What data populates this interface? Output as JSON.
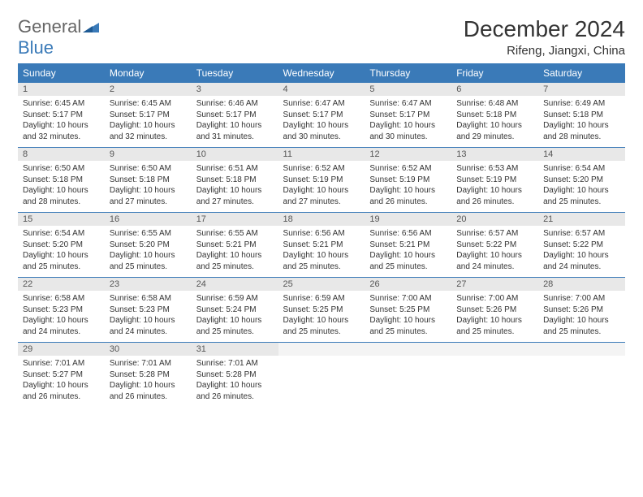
{
  "brand": {
    "word1": "General",
    "word2": "Blue"
  },
  "title": "December 2024",
  "location": "Rifeng, Jiangxi, China",
  "colors": {
    "accent": "#3a7ab8",
    "header_bg": "#3a7ab8",
    "header_text": "#ffffff",
    "daynum_bg": "#e8e8e8",
    "body_text": "#333333",
    "page_bg": "#ffffff"
  },
  "weekdays": [
    "Sunday",
    "Monday",
    "Tuesday",
    "Wednesday",
    "Thursday",
    "Friday",
    "Saturday"
  ],
  "weeks": [
    [
      {
        "day": "1",
        "sunrise": "Sunrise: 6:45 AM",
        "sunset": "Sunset: 5:17 PM",
        "daylight": "Daylight: 10 hours and 32 minutes."
      },
      {
        "day": "2",
        "sunrise": "Sunrise: 6:45 AM",
        "sunset": "Sunset: 5:17 PM",
        "daylight": "Daylight: 10 hours and 32 minutes."
      },
      {
        "day": "3",
        "sunrise": "Sunrise: 6:46 AM",
        "sunset": "Sunset: 5:17 PM",
        "daylight": "Daylight: 10 hours and 31 minutes."
      },
      {
        "day": "4",
        "sunrise": "Sunrise: 6:47 AM",
        "sunset": "Sunset: 5:17 PM",
        "daylight": "Daylight: 10 hours and 30 minutes."
      },
      {
        "day": "5",
        "sunrise": "Sunrise: 6:47 AM",
        "sunset": "Sunset: 5:17 PM",
        "daylight": "Daylight: 10 hours and 30 minutes."
      },
      {
        "day": "6",
        "sunrise": "Sunrise: 6:48 AM",
        "sunset": "Sunset: 5:18 PM",
        "daylight": "Daylight: 10 hours and 29 minutes."
      },
      {
        "day": "7",
        "sunrise": "Sunrise: 6:49 AM",
        "sunset": "Sunset: 5:18 PM",
        "daylight": "Daylight: 10 hours and 28 minutes."
      }
    ],
    [
      {
        "day": "8",
        "sunrise": "Sunrise: 6:50 AM",
        "sunset": "Sunset: 5:18 PM",
        "daylight": "Daylight: 10 hours and 28 minutes."
      },
      {
        "day": "9",
        "sunrise": "Sunrise: 6:50 AM",
        "sunset": "Sunset: 5:18 PM",
        "daylight": "Daylight: 10 hours and 27 minutes."
      },
      {
        "day": "10",
        "sunrise": "Sunrise: 6:51 AM",
        "sunset": "Sunset: 5:18 PM",
        "daylight": "Daylight: 10 hours and 27 minutes."
      },
      {
        "day": "11",
        "sunrise": "Sunrise: 6:52 AM",
        "sunset": "Sunset: 5:19 PM",
        "daylight": "Daylight: 10 hours and 27 minutes."
      },
      {
        "day": "12",
        "sunrise": "Sunrise: 6:52 AM",
        "sunset": "Sunset: 5:19 PM",
        "daylight": "Daylight: 10 hours and 26 minutes."
      },
      {
        "day": "13",
        "sunrise": "Sunrise: 6:53 AM",
        "sunset": "Sunset: 5:19 PM",
        "daylight": "Daylight: 10 hours and 26 minutes."
      },
      {
        "day": "14",
        "sunrise": "Sunrise: 6:54 AM",
        "sunset": "Sunset: 5:20 PM",
        "daylight": "Daylight: 10 hours and 25 minutes."
      }
    ],
    [
      {
        "day": "15",
        "sunrise": "Sunrise: 6:54 AM",
        "sunset": "Sunset: 5:20 PM",
        "daylight": "Daylight: 10 hours and 25 minutes."
      },
      {
        "day": "16",
        "sunrise": "Sunrise: 6:55 AM",
        "sunset": "Sunset: 5:20 PM",
        "daylight": "Daylight: 10 hours and 25 minutes."
      },
      {
        "day": "17",
        "sunrise": "Sunrise: 6:55 AM",
        "sunset": "Sunset: 5:21 PM",
        "daylight": "Daylight: 10 hours and 25 minutes."
      },
      {
        "day": "18",
        "sunrise": "Sunrise: 6:56 AM",
        "sunset": "Sunset: 5:21 PM",
        "daylight": "Daylight: 10 hours and 25 minutes."
      },
      {
        "day": "19",
        "sunrise": "Sunrise: 6:56 AM",
        "sunset": "Sunset: 5:21 PM",
        "daylight": "Daylight: 10 hours and 25 minutes."
      },
      {
        "day": "20",
        "sunrise": "Sunrise: 6:57 AM",
        "sunset": "Sunset: 5:22 PM",
        "daylight": "Daylight: 10 hours and 24 minutes."
      },
      {
        "day": "21",
        "sunrise": "Sunrise: 6:57 AM",
        "sunset": "Sunset: 5:22 PM",
        "daylight": "Daylight: 10 hours and 24 minutes."
      }
    ],
    [
      {
        "day": "22",
        "sunrise": "Sunrise: 6:58 AM",
        "sunset": "Sunset: 5:23 PM",
        "daylight": "Daylight: 10 hours and 24 minutes."
      },
      {
        "day": "23",
        "sunrise": "Sunrise: 6:58 AM",
        "sunset": "Sunset: 5:23 PM",
        "daylight": "Daylight: 10 hours and 24 minutes."
      },
      {
        "day": "24",
        "sunrise": "Sunrise: 6:59 AM",
        "sunset": "Sunset: 5:24 PM",
        "daylight": "Daylight: 10 hours and 25 minutes."
      },
      {
        "day": "25",
        "sunrise": "Sunrise: 6:59 AM",
        "sunset": "Sunset: 5:25 PM",
        "daylight": "Daylight: 10 hours and 25 minutes."
      },
      {
        "day": "26",
        "sunrise": "Sunrise: 7:00 AM",
        "sunset": "Sunset: 5:25 PM",
        "daylight": "Daylight: 10 hours and 25 minutes."
      },
      {
        "day": "27",
        "sunrise": "Sunrise: 7:00 AM",
        "sunset": "Sunset: 5:26 PM",
        "daylight": "Daylight: 10 hours and 25 minutes."
      },
      {
        "day": "28",
        "sunrise": "Sunrise: 7:00 AM",
        "sunset": "Sunset: 5:26 PM",
        "daylight": "Daylight: 10 hours and 25 minutes."
      }
    ],
    [
      {
        "day": "29",
        "sunrise": "Sunrise: 7:01 AM",
        "sunset": "Sunset: 5:27 PM",
        "daylight": "Daylight: 10 hours and 26 minutes."
      },
      {
        "day": "30",
        "sunrise": "Sunrise: 7:01 AM",
        "sunset": "Sunset: 5:28 PM",
        "daylight": "Daylight: 10 hours and 26 minutes."
      },
      {
        "day": "31",
        "sunrise": "Sunrise: 7:01 AM",
        "sunset": "Sunset: 5:28 PM",
        "daylight": "Daylight: 10 hours and 26 minutes."
      },
      {
        "empty": true
      },
      {
        "empty": true
      },
      {
        "empty": true
      },
      {
        "empty": true
      }
    ]
  ]
}
